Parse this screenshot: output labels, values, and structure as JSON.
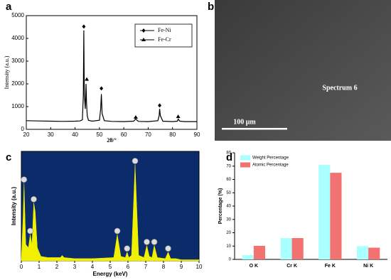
{
  "chart_data": [
    {
      "type": "line",
      "panel_label": "a",
      "x_label": "2θ/°",
      "y_label": "Intensity (a.u.)",
      "x": [
        20,
        25,
        30,
        35,
        40,
        42,
        43,
        43.4,
        43.6,
        43.8,
        44.2,
        44.5,
        44.7,
        45,
        45.5,
        47,
        50,
        50.5,
        50.8,
        51.1,
        52,
        55,
        60,
        64,
        64.9,
        66,
        70,
        74,
        74.5,
        74.7,
        75,
        76,
        80,
        82,
        82.3,
        83,
        85,
        90
      ],
      "values": [
        380,
        370,
        360,
        350,
        360,
        370,
        420,
        1500,
        4350,
        1500,
        900,
        2000,
        1200,
        600,
        400,
        360,
        400,
        900,
        1550,
        700,
        380,
        350,
        340,
        360,
        450,
        350,
        340,
        380,
        600,
        900,
        600,
        360,
        340,
        360,
        450,
        360,
        340,
        340
      ],
      "color": "#000000",
      "series": [
        {
          "name": "Fe-Ni",
          "marker": "diamond",
          "x": [
            43.6,
            50.8,
            74.7
          ],
          "values": [
            4520,
            1800,
            1050
          ]
        },
        {
          "name": "Fe-Cr",
          "marker": "triangle",
          "x": [
            44.8,
            64.9,
            82.3
          ],
          "values": [
            2200,
            530,
            560
          ]
        }
      ],
      "xlim": [
        20,
        90
      ],
      "xticks": [
        20,
        30,
        40,
        50,
        60,
        70,
        80,
        90
      ],
      "ylim": [
        0,
        5000
      ],
      "yticks": [
        0,
        1000,
        2000,
        3000,
        4000,
        5000
      ]
    },
    {
      "type": "image",
      "panel_label": "b",
      "annotation": "Spectrum 6",
      "scale_bar": "100 μm"
    },
    {
      "type": "area",
      "panel_label": "c",
      "x_label": "Energy (keV)",
      "y_label": "Intensity (a.u.)",
      "x": [
        0,
        0.1,
        0.15,
        0.25,
        0.4,
        0.5,
        0.6,
        0.7,
        0.78,
        0.9,
        1.1,
        1.5,
        2.2,
        2.3,
        2.4,
        3,
        4,
        5.2,
        5.4,
        5.6,
        5.85,
        5.95,
        6.05,
        6.2,
        6.4,
        6.6,
        6.9,
        7.06,
        7.2,
        7.35,
        7.48,
        7.65,
        8.1,
        8.26,
        8.4,
        8.7,
        9,
        10
      ],
      "values": [
        2,
        40,
        71,
        15,
        12,
        24,
        15,
        53,
        45,
        12,
        4,
        3,
        3,
        5,
        3,
        2,
        2,
        3,
        24,
        4,
        3,
        8,
        3,
        5,
        88,
        5,
        3,
        14,
        4,
        3,
        14,
        3,
        2,
        8,
        2,
        2,
        1,
        1
      ],
      "color": "#f0f000",
      "background": "#0b2b6b",
      "xlim": [
        0,
        10
      ],
      "xticks": [
        0,
        1,
        2,
        3,
        4,
        5,
        6,
        7,
        8,
        9,
        10
      ],
      "ylim": [
        0,
        100
      ]
    },
    {
      "type": "bar",
      "panel_label": "d",
      "y_label": "Percentage (%)",
      "categories": [
        "O K",
        "Cr K",
        "Fe K",
        "Ni K"
      ],
      "series": [
        {
          "name": "Weight Percentage",
          "color": "#aaffff",
          "values": [
            3.2,
            16,
            71,
            10
          ]
        },
        {
          "name": "Atomic Percentage",
          "color": "#f27272",
          "values": [
            10.2,
            16,
            65,
            8.8
          ]
        }
      ],
      "ylim": [
        0,
        80
      ],
      "yticks": [
        0,
        10,
        20,
        30,
        40,
        50,
        60,
        70,
        80
      ]
    }
  ]
}
